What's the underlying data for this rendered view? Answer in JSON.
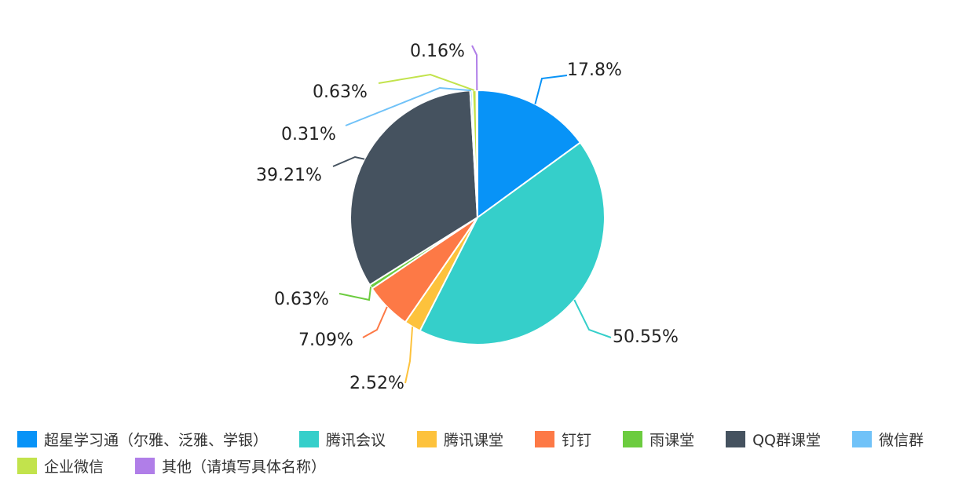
{
  "chart_data": {
    "type": "pie",
    "slices": [
      {
        "label": "超星学习通（尔雅、泛雅、学银）",
        "value": 17.8,
        "value_label": "17.8%",
        "color": "#0893f7"
      },
      {
        "label": "腾讯会议",
        "value": 50.55,
        "value_label": "50.55%",
        "color": "#35cfca"
      },
      {
        "label": "腾讯课堂",
        "value": 2.52,
        "value_label": "2.52%",
        "color": "#fdc23c"
      },
      {
        "label": "钉钉",
        "value": 7.09,
        "value_label": "7.09%",
        "color": "#fd7946"
      },
      {
        "label": "雨课堂",
        "value": 0.63,
        "value_label": "0.63%",
        "color": "#6ccc3f"
      },
      {
        "label": "QQ群课堂",
        "value": 39.21,
        "value_label": "39.21%",
        "color": "#45525f"
      },
      {
        "label": "微信群",
        "value": 0.31,
        "value_label": "0.31%",
        "color": "#70c2f8"
      },
      {
        "label": "企业微信",
        "value": 0.63,
        "value_label": "0.63%",
        "color": "#c2e34c"
      },
      {
        "label": "其他（请填写具体名称）",
        "value": 0.16,
        "value_label": "0.16%",
        "color": "#b07ee8"
      }
    ],
    "legend_position": "bottom"
  }
}
